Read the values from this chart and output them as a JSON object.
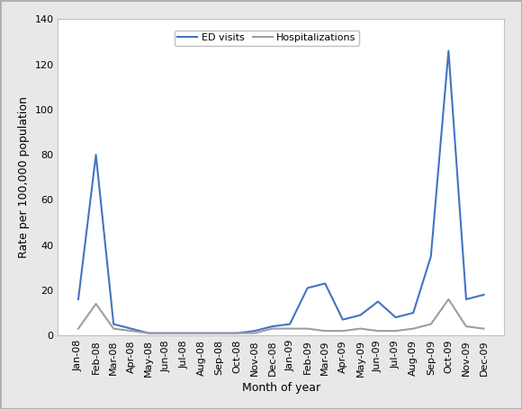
{
  "months": [
    "Jan-08",
    "Feb-08",
    "Mar-08",
    "Apr-08",
    "May-08",
    "Jun-08",
    "Jul-08",
    "Aug-08",
    "Sep-08",
    "Oct-08",
    "Nov-08",
    "Dec-08",
    "Jan-09",
    "Feb-09",
    "Mar-09",
    "Apr-09",
    "May-09",
    "Jun-09",
    "Jul-09",
    "Aug-09",
    "Sep-09",
    "Oct-09",
    "Nov-09",
    "Dec-09"
  ],
  "ed_visits": [
    16,
    80,
    5,
    3,
    1,
    1,
    1,
    1,
    1,
    1,
    2,
    4,
    5,
    21,
    23,
    7,
    9,
    15,
    8,
    10,
    35,
    126,
    16,
    18
  ],
  "hospitalizations": [
    3,
    14,
    3,
    2,
    1,
    1,
    1,
    1,
    1,
    1,
    1,
    3,
    3,
    3,
    2,
    2,
    3,
    2,
    2,
    3,
    5,
    16,
    4,
    3
  ],
  "ed_color": "#4472C4",
  "hosp_color": "#9E9E9E",
  "ylabel": "Rate per 100,000 population",
  "xlabel": "Month of year",
  "ylim": [
    0,
    140
  ],
  "yticks": [
    0,
    20,
    40,
    60,
    80,
    100,
    120,
    140
  ],
  "legend_ed": "ED visits",
  "legend_hosp": "Hospitalizations",
  "fig_bg_color": "#E8E8E8",
  "plot_bg_color": "#FFFFFF",
  "border_color": "#C0C0C0",
  "line_width": 1.5,
  "axis_fontsize": 9,
  "tick_fontsize": 8,
  "legend_fontsize": 8
}
